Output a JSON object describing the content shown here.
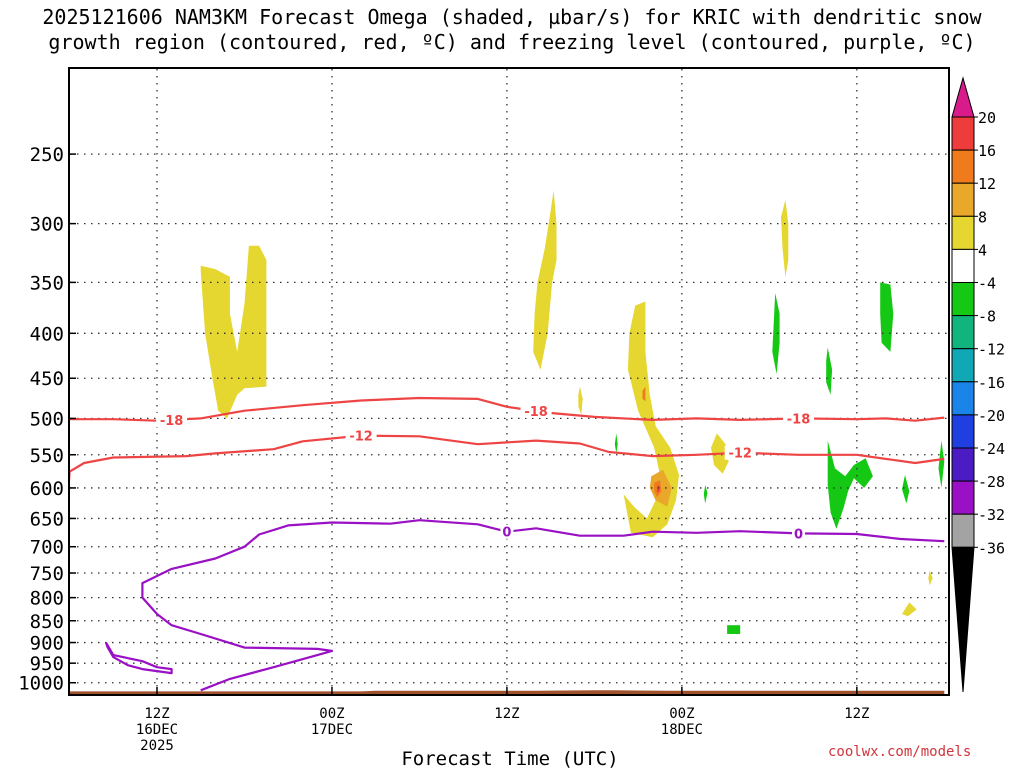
{
  "title_line1": "2025121606 NAM3KM Forecast Omega (shaded, µbar/s) for KRIC with dendritic snow",
  "title_line2": "growth region (contoured, red, ºC) and freezing level (contoured, purple, ºC)",
  "credit": "coolwx.com/models",
  "chart_data": {
    "type": "heatmap",
    "title": "2025121606 NAM3KM Forecast Omega (shaded, µbar/s) for KRIC with dendritic snow growth region (contoured, red, ºC) and freezing level (contoured, purple, ºC)",
    "xlabel": "Forecast Time (UTC)",
    "ylabel": "",
    "x_unit": "forecast hour from 2025-12-16 06Z",
    "xlim": [
      0,
      60
    ],
    "ylim": [
      1030,
      200
    ],
    "y_scale": "log",
    "grid": true,
    "x_ticks": [
      {
        "hour": 6,
        "lines": [
          "12Z",
          "16DEC",
          "2025"
        ]
      },
      {
        "hour": 18,
        "lines": [
          "00Z",
          "17DEC"
        ]
      },
      {
        "hour": 30,
        "lines": [
          "12Z"
        ]
      },
      {
        "hour": 42,
        "lines": [
          "00Z",
          "18DEC"
        ]
      },
      {
        "hour": 54,
        "lines": [
          "12Z"
        ]
      }
    ],
    "y_ticks": [
      250,
      300,
      350,
      400,
      450,
      500,
      550,
      600,
      650,
      700,
      750,
      800,
      850,
      900,
      950,
      1000
    ],
    "colorbar": {
      "labels": [
        "20",
        "16",
        "12",
        "8",
        "4",
        "-4",
        "-8",
        "-12",
        "-16",
        "-20",
        "-24",
        "-28",
        "-32",
        "-36"
      ],
      "colors": [
        "#d81a8a",
        "#ee3b3b",
        "#ef7b1c",
        "#e9a82a",
        "#e5d630",
        "#ffffff",
        "#14c814",
        "#10b47c",
        "#10a8b4",
        "#1b84e8",
        "#1f3fe0",
        "#4b1cc4",
        "#9a10c4",
        "#a3a3a3",
        "#000000"
      ]
    },
    "contours": [
      {
        "level": "-18",
        "color": "#ee4444",
        "label_hours": [
          7,
          32,
          50
        ],
        "points": [
          [
            -1,
            501
          ],
          [
            3,
            501
          ],
          [
            6,
            503
          ],
          [
            9,
            500
          ],
          [
            12,
            490
          ],
          [
            16,
            483
          ],
          [
            20,
            477
          ],
          [
            24,
            474
          ],
          [
            28,
            475
          ],
          [
            30,
            485
          ],
          [
            33,
            493
          ],
          [
            36,
            498
          ],
          [
            40,
            502
          ],
          [
            43,
            500
          ],
          [
            46,
            502
          ],
          [
            50,
            500
          ],
          [
            54,
            501
          ],
          [
            56,
            500
          ],
          [
            58,
            503
          ],
          [
            60,
            499
          ]
        ]
      },
      {
        "level": "-12",
        "color": "#ee4444",
        "label_hours": [
          20,
          46
        ],
        "points": [
          [
            -1,
            590
          ],
          [
            0,
            575
          ],
          [
            1,
            562
          ],
          [
            3,
            554
          ],
          [
            8,
            552
          ],
          [
            10,
            548
          ],
          [
            14,
            542
          ],
          [
            16,
            531
          ],
          [
            20,
            523
          ],
          [
            24,
            524
          ],
          [
            28,
            535
          ],
          [
            32,
            530
          ],
          [
            35,
            534
          ],
          [
            37,
            546
          ],
          [
            40,
            552
          ],
          [
            43,
            550
          ],
          [
            46,
            547
          ],
          [
            50,
            550
          ],
          [
            54,
            550
          ],
          [
            58,
            562
          ],
          [
            60,
            556
          ]
        ]
      },
      {
        "level": "0",
        "color": "#9a10c4",
        "label_hours": [
          30,
          50
        ],
        "points": [
          [
            9,
            1020
          ],
          [
            11,
            990
          ],
          [
            14,
            960
          ],
          [
            17,
            930
          ],
          [
            18,
            920
          ],
          [
            17,
            915
          ],
          [
            12,
            912
          ],
          [
            9,
            880
          ],
          [
            7,
            860
          ],
          [
            6,
            835
          ],
          [
            5,
            800
          ],
          [
            5,
            770
          ],
          [
            7,
            742
          ],
          [
            10,
            722
          ],
          [
            12,
            700
          ],
          [
            13,
            678
          ],
          [
            15,
            662
          ],
          [
            18,
            657
          ],
          [
            22,
            659
          ],
          [
            24,
            653
          ],
          [
            28,
            660
          ],
          [
            30,
            673
          ],
          [
            32,
            667
          ],
          [
            35,
            680
          ],
          [
            38,
            680
          ],
          [
            40,
            673
          ],
          [
            43,
            675
          ],
          [
            46,
            672
          ],
          [
            50,
            676
          ],
          [
            54,
            677
          ],
          [
            57,
            686
          ],
          [
            60,
            690
          ]
        ]
      },
      {
        "level": "0",
        "color": "#9a10c4",
        "label_hours": [],
        "points": [
          [
            2.5,
            900
          ],
          [
            3,
            930
          ],
          [
            5,
            945
          ],
          [
            6,
            960
          ],
          [
            7,
            965
          ],
          [
            7,
            975
          ],
          [
            5,
            965
          ],
          [
            4,
            955
          ],
          [
            3,
            935
          ],
          [
            2.6,
            910
          ],
          [
            2.5,
            900
          ]
        ]
      }
    ],
    "shaded_regions": [
      {
        "color": "#e5d630",
        "points": [
          [
            9,
            335
          ],
          [
            10,
            338
          ],
          [
            11,
            345
          ],
          [
            11,
            380
          ],
          [
            11.5,
            420
          ],
          [
            12,
            370
          ],
          [
            12.3,
            318
          ],
          [
            13,
            318
          ],
          [
            13.5,
            330
          ],
          [
            13.5,
            400
          ],
          [
            13.5,
            460
          ],
          [
            12,
            462
          ],
          [
            11.5,
            470
          ],
          [
            10.8,
            500
          ],
          [
            10.2,
            490
          ],
          [
            9.8,
            450
          ],
          [
            9.3,
            400
          ],
          [
            9,
            340
          ]
        ]
      },
      {
        "color": "#e5d630",
        "points": [
          [
            33.2,
            275
          ],
          [
            33.4,
            300
          ],
          [
            33.4,
            330
          ],
          [
            33.1,
            350
          ],
          [
            32.8,
            400
          ],
          [
            32.3,
            440
          ],
          [
            31.8,
            420
          ],
          [
            31.9,
            380
          ],
          [
            32.1,
            350
          ],
          [
            32.6,
            320
          ],
          [
            33,
            290
          ]
        ]
      },
      {
        "color": "#e5d630",
        "points": [
          [
            35,
            460
          ],
          [
            35.2,
            475
          ],
          [
            35.1,
            495
          ],
          [
            34.9,
            485
          ],
          [
            34.9,
            470
          ]
        ]
      },
      {
        "color": "#e5d630",
        "points": [
          [
            38.8,
            372
          ],
          [
            39.5,
            368
          ],
          [
            39.5,
            420
          ],
          [
            39.8,
            470
          ],
          [
            40.2,
            510
          ],
          [
            41.2,
            540
          ],
          [
            41.8,
            580
          ],
          [
            41.6,
            620
          ],
          [
            41,
            660
          ],
          [
            40,
            683
          ],
          [
            38.5,
            675
          ],
          [
            38,
            610
          ],
          [
            38.7,
            630
          ],
          [
            39.6,
            650
          ],
          [
            40.2,
            620
          ],
          [
            40.5,
            580
          ],
          [
            40.1,
            540
          ],
          [
            39,
            490
          ],
          [
            38.3,
            440
          ],
          [
            38.4,
            400
          ]
        ]
      },
      {
        "color": "#e5d630",
        "points": [
          [
            44.4,
            520
          ],
          [
            45,
            535
          ],
          [
            45.2,
            560
          ],
          [
            44.8,
            578
          ],
          [
            44.2,
            565
          ],
          [
            44,
            540
          ]
        ]
      },
      {
        "color": "#e5d630",
        "points": [
          [
            49.1,
            282
          ],
          [
            49.3,
            300
          ],
          [
            49.3,
            330
          ],
          [
            49.1,
            345
          ],
          [
            48.9,
            320
          ],
          [
            48.8,
            295
          ]
        ]
      },
      {
        "color": "#e5d630",
        "points": [
          [
            59,
            745
          ],
          [
            59.2,
            760
          ],
          [
            59,
            775
          ],
          [
            58.9,
            760
          ]
        ]
      },
      {
        "color": "#e5d630",
        "points": [
          [
            57.6,
            810
          ],
          [
            58.1,
            825
          ],
          [
            57.5,
            840
          ],
          [
            57.1,
            835
          ]
        ]
      },
      {
        "color": "#e9a82a",
        "points": [
          [
            39.9,
            582
          ],
          [
            40.7,
            572
          ],
          [
            41.3,
            600
          ],
          [
            41,
            630
          ],
          [
            40.2,
            620
          ],
          [
            39.8,
            600
          ]
        ]
      },
      {
        "color": "#ef7b1c",
        "points": [
          [
            40.1,
            592
          ],
          [
            40.5,
            588
          ],
          [
            40.6,
            605
          ],
          [
            40.3,
            615
          ],
          [
            40.1,
            605
          ]
        ]
      },
      {
        "color": "#ee3b3b",
        "points": [
          [
            40.3,
            597
          ],
          [
            40.45,
            596
          ],
          [
            40.45,
            606
          ],
          [
            40.3,
            607
          ]
        ]
      },
      {
        "color": "#ef7b1c",
        "points": [
          [
            39.3,
            465
          ],
          [
            39.5,
            460
          ],
          [
            39.5,
            478
          ],
          [
            39.3,
            475
          ]
        ]
      },
      {
        "color": "#14c814",
        "points": [
          [
            48.4,
            360
          ],
          [
            48.7,
            380
          ],
          [
            48.7,
            410
          ],
          [
            48.5,
            445
          ],
          [
            48.2,
            420
          ],
          [
            48.3,
            390
          ]
        ]
      },
      {
        "color": "#14c814",
        "points": [
          [
            52,
            415
          ],
          [
            52.3,
            440
          ],
          [
            52.2,
            470
          ],
          [
            51.9,
            455
          ],
          [
            51.9,
            430
          ]
        ]
      },
      {
        "color": "#14c814",
        "points": [
          [
            55.6,
            350
          ],
          [
            56.3,
            352
          ],
          [
            56.5,
            380
          ],
          [
            56.3,
            420
          ],
          [
            55.7,
            410
          ],
          [
            55.6,
            380
          ]
        ]
      },
      {
        "color": "#14c814",
        "points": [
          [
            52,
            530
          ],
          [
            52.5,
            570
          ],
          [
            53.2,
            582
          ],
          [
            53.8,
            565
          ],
          [
            54.6,
            555
          ],
          [
            55.1,
            582
          ],
          [
            54.5,
            600
          ],
          [
            53.8,
            585
          ],
          [
            53.4,
            605
          ],
          [
            53.1,
            632
          ],
          [
            52.6,
            668
          ],
          [
            52.2,
            640
          ],
          [
            52,
            595
          ]
        ]
      },
      {
        "color": "#14c814",
        "points": [
          [
            37.5,
            520
          ],
          [
            37.6,
            535
          ],
          [
            37.5,
            548
          ],
          [
            37.4,
            535
          ]
        ]
      },
      {
        "color": "#14c814",
        "points": [
          [
            43.6,
            595
          ],
          [
            43.75,
            608
          ],
          [
            43.6,
            625
          ],
          [
            43.5,
            610
          ]
        ]
      },
      {
        "color": "#14c814",
        "points": [
          [
            57.3,
            580
          ],
          [
            57.6,
            605
          ],
          [
            57.4,
            625
          ],
          [
            57.1,
            602
          ]
        ]
      },
      {
        "color": "#14c814",
        "points": [
          [
            59.8,
            530
          ],
          [
            60,
            560
          ],
          [
            59.8,
            600
          ],
          [
            59.6,
            570
          ]
        ]
      },
      {
        "color": "#14c814",
        "points": [
          [
            45.1,
            860
          ],
          [
            46,
            860
          ],
          [
            46,
            880
          ],
          [
            45.1,
            880
          ]
        ]
      }
    ],
    "terrain": {
      "color": "#a0522d",
      "points": [
        [
          -1,
          1023
        ],
        [
          20,
          1023
        ],
        [
          21,
          1021
        ],
        [
          31,
          1021
        ],
        [
          32,
          1021
        ],
        [
          36,
          1020
        ],
        [
          37.5,
          1020
        ],
        [
          41,
          1021
        ],
        [
          60,
          1021
        ],
        [
          60,
          1030
        ],
        [
          -1,
          1030
        ]
      ]
    }
  }
}
